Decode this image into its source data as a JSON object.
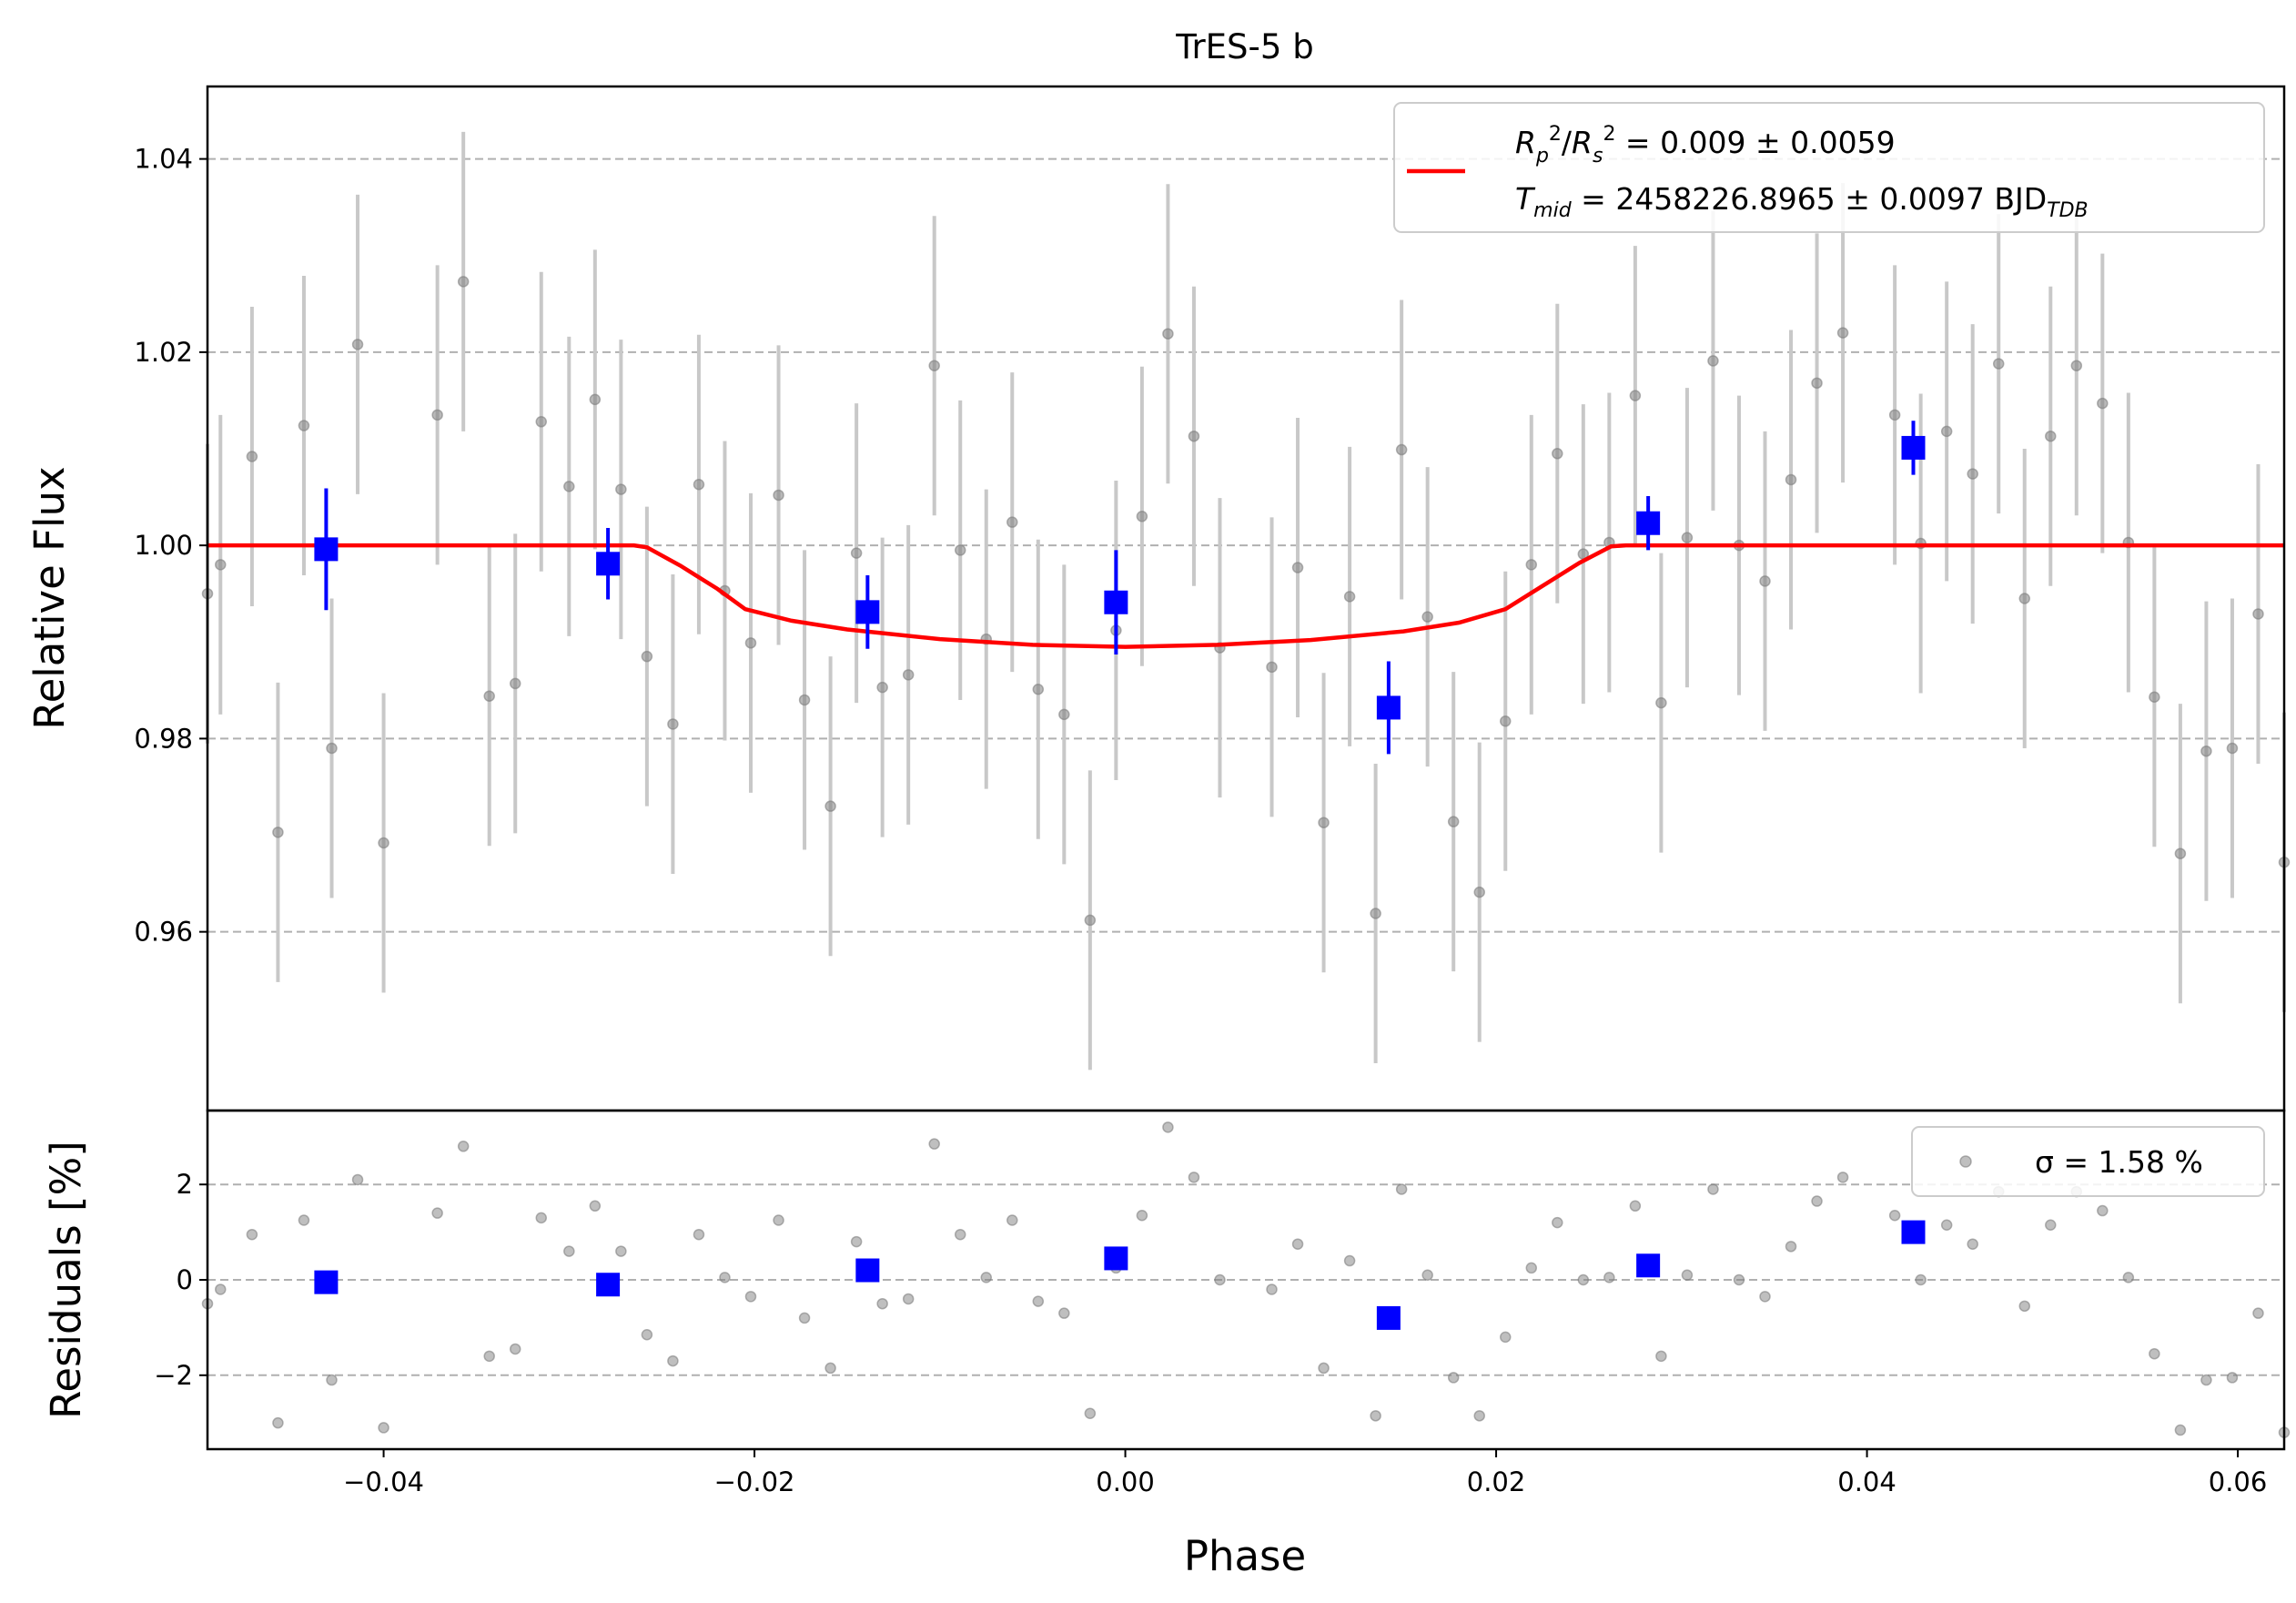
{
  "chart_data": [
    {
      "type": "scatter",
      "title": "TrES-5 b",
      "xlabel": "Phase",
      "ylabel": "Relative Flux",
      "xlim": [
        -0.0495,
        0.0625
      ],
      "ylim": [
        0.9415,
        1.0475
      ],
      "xticks": [
        -0.04,
        -0.02,
        0.0,
        0.02,
        0.04,
        0.06
      ],
      "xtick_labels": [
        "−0.04",
        "−0.02",
        "0.00",
        "0.02",
        "0.04",
        "0.06"
      ],
      "yticks": [
        0.96,
        0.98,
        1.0,
        1.02,
        1.04
      ],
      "ytick_labels": [
        "0.96",
        "0.98",
        "1.00",
        "1.02",
        "1.04"
      ],
      "grid": "horizontal dashed",
      "legend_position": "top-right",
      "legend": {
        "line1": "R_p^2/R_s^2 = 0.009 ± 0.0059",
        "line2": "T_mid = 2458226.8965 ± 0.0097 BJD_TDB"
      },
      "colors": {
        "raw": "#808080",
        "errorbar": "#c8c8c8",
        "binned": "#0000ff",
        "model": "#ff0000"
      },
      "raw_error": 0.0155,
      "raw": [
        [
          -0.0495,
          0.995
        ],
        [
          -0.0488,
          0.998
        ],
        [
          -0.0471,
          1.0092
        ],
        [
          -0.0457,
          0.9703
        ],
        [
          -0.0443,
          1.0124
        ],
        [
          -0.0428,
          0.979
        ],
        [
          -0.0414,
          1.0208
        ],
        [
          -0.04,
          0.9692
        ],
        [
          -0.0371,
          1.0135
        ],
        [
          -0.0357,
          1.0273
        ],
        [
          -0.0343,
          0.9844
        ],
        [
          -0.0329,
          0.9857
        ],
        [
          -0.0315,
          1.0128
        ],
        [
          -0.03,
          1.0061
        ],
        [
          -0.0286,
          1.0151
        ],
        [
          -0.0272,
          1.0058
        ],
        [
          -0.0258,
          0.9885
        ],
        [
          -0.0244,
          0.9815
        ],
        [
          -0.023,
          1.0063
        ],
        [
          -0.0216,
          0.9953
        ],
        [
          -0.0202,
          0.9899
        ],
        [
          -0.0187,
          1.0052
        ],
        [
          -0.0173,
          0.984
        ],
        [
          -0.0159,
          0.973
        ],
        [
          -0.0145,
          0.9992
        ],
        [
          -0.0131,
          0.9853
        ],
        [
          -0.0117,
          0.9866
        ],
        [
          -0.0103,
          1.0186
        ],
        [
          -0.0089,
          0.9995
        ],
        [
          -0.0075,
          0.9903
        ],
        [
          -0.0061,
          1.0024
        ],
        [
          -0.0047,
          0.9851
        ],
        [
          -0.0033,
          0.9825
        ],
        [
          -0.0019,
          0.9612
        ],
        [
          -0.0005,
          0.9912
        ],
        [
          0.0009,
          1.003
        ],
        [
          0.0023,
          1.0219
        ],
        [
          0.0037,
          1.0113
        ],
        [
          0.0051,
          0.9894
        ],
        [
          0.0079,
          0.9874
        ],
        [
          0.0093,
          0.9977
        ],
        [
          0.0107,
          0.9713
        ],
        [
          0.0121,
          0.9947
        ],
        [
          0.0135,
          0.9619
        ],
        [
          0.0149,
          1.0099
        ],
        [
          0.0163,
          0.9926
        ],
        [
          0.0177,
          0.9714
        ],
        [
          0.0191,
          0.9641
        ],
        [
          0.0205,
          0.9818
        ],
        [
          0.0219,
          0.998
        ],
        [
          0.0233,
          1.0095
        ],
        [
          0.0247,
          0.9991
        ],
        [
          0.0261,
          1.0003
        ],
        [
          0.0275,
          1.0155
        ],
        [
          0.0289,
          0.9837
        ],
        [
          0.0303,
          1.0008
        ],
        [
          0.0317,
          1.0191
        ],
        [
          0.0331,
          1.0
        ],
        [
          0.0345,
          0.9963
        ],
        [
          0.0359,
          1.0068
        ],
        [
          0.0373,
          1.0168
        ],
        [
          0.0387,
          1.022
        ],
        [
          0.0415,
          1.0135
        ],
        [
          0.0429,
          1.0002
        ],
        [
          0.0443,
          1.0118
        ],
        [
          0.0457,
          1.0074
        ],
        [
          0.0471,
          1.0188
        ],
        [
          0.0485,
          0.9945
        ],
        [
          0.0499,
          1.0113
        ],
        [
          0.0513,
          1.0186
        ],
        [
          0.0527,
          1.0147
        ],
        [
          0.0541,
          1.0003
        ],
        [
          0.0555,
          0.9843
        ],
        [
          0.0569,
          0.9681
        ],
        [
          0.0583,
          0.9787
        ],
        [
          0.0597,
          0.979
        ],
        [
          0.0611,
          0.9929
        ],
        [
          0.0625,
          0.9672
        ]
      ],
      "binned": [
        [
          -0.0431,
          0.9996,
          0.0063
        ],
        [
          -0.0279,
          0.9981,
          0.0037
        ],
        [
          -0.0139,
          0.9931,
          0.0038
        ],
        [
          -0.0005,
          0.9941,
          0.0054
        ],
        [
          0.0142,
          0.9832,
          0.0048
        ],
        [
          0.0282,
          1.0023,
          0.0028
        ],
        [
          0.0425,
          1.0101,
          0.0028
        ]
      ],
      "model": [
        [
          -0.0495,
          1.0
        ],
        [
          -0.0265,
          1.0
        ],
        [
          -0.0258,
          0.9998
        ],
        [
          -0.024,
          0.9979
        ],
        [
          -0.022,
          0.9955
        ],
        [
          -0.0205,
          0.9934
        ],
        [
          -0.018,
          0.9922
        ],
        [
          -0.015,
          0.9913
        ],
        [
          -0.01,
          0.9903
        ],
        [
          -0.005,
          0.9897
        ],
        [
          0.0,
          0.9895
        ],
        [
          0.005,
          0.9897
        ],
        [
          0.01,
          0.9902
        ],
        [
          0.015,
          0.9911
        ],
        [
          0.018,
          0.992
        ],
        [
          0.0205,
          0.9934
        ],
        [
          0.0225,
          0.9958
        ],
        [
          0.0245,
          0.9982
        ],
        [
          0.0262,
          0.9999
        ],
        [
          0.027,
          1.0
        ],
        [
          0.0625,
          1.0
        ]
      ]
    },
    {
      "type": "scatter",
      "xlabel": "Phase",
      "ylabel": "Residuals [%]",
      "xlim": [
        -0.0495,
        0.0625
      ],
      "ylim": [
        -3.55,
        3.55
      ],
      "yticks": [
        -2,
        0,
        2
      ],
      "ytick_labels": [
        "−2",
        "0",
        "2"
      ],
      "grid": "horizontal dashed",
      "legend_position": "top-right",
      "legend": {
        "label": "σ = 1.58 %"
      },
      "raw": [
        [
          -0.0495,
          -0.5
        ],
        [
          -0.0488,
          -0.2
        ],
        [
          -0.0471,
          0.95
        ],
        [
          -0.0457,
          -3.0
        ],
        [
          -0.0443,
          1.25
        ],
        [
          -0.0428,
          -2.1
        ],
        [
          -0.0414,
          2.1
        ],
        [
          -0.04,
          -3.1
        ],
        [
          -0.0371,
          1.4
        ],
        [
          -0.0357,
          2.8
        ],
        [
          -0.0343,
          -1.6
        ],
        [
          -0.0329,
          -1.45
        ],
        [
          -0.0315,
          1.3
        ],
        [
          -0.03,
          0.6
        ],
        [
          -0.0286,
          1.55
        ],
        [
          -0.0272,
          0.6
        ],
        [
          -0.0258,
          -1.15
        ],
        [
          -0.0244,
          -1.7
        ],
        [
          -0.023,
          0.95
        ],
        [
          -0.0216,
          0.05
        ],
        [
          -0.0202,
          -0.35
        ],
        [
          -0.0187,
          1.25
        ],
        [
          -0.0173,
          -0.8
        ],
        [
          -0.0159,
          -1.85
        ],
        [
          -0.0145,
          0.8
        ],
        [
          -0.0131,
          -0.5
        ],
        [
          -0.0117,
          -0.4
        ],
        [
          -0.0103,
          2.85
        ],
        [
          -0.0089,
          0.95
        ],
        [
          -0.0075,
          0.05
        ],
        [
          -0.0061,
          1.25
        ],
        [
          -0.0047,
          -0.45
        ],
        [
          -0.0033,
          -0.7
        ],
        [
          -0.0019,
          -2.8
        ],
        [
          -0.0005,
          0.25
        ],
        [
          0.0009,
          1.35
        ],
        [
          0.0023,
          3.2
        ],
        [
          0.0037,
          2.15
        ],
        [
          0.0051,
          0.0
        ],
        [
          0.0079,
          -0.2
        ],
        [
          0.0093,
          0.75
        ],
        [
          0.0107,
          -1.85
        ],
        [
          0.0121,
          0.4
        ],
        [
          0.0135,
          -2.85
        ],
        [
          0.0149,
          1.9
        ],
        [
          0.0163,
          0.1
        ],
        [
          0.0177,
          -2.05
        ],
        [
          0.0191,
          -2.85
        ],
        [
          0.0205,
          -1.2
        ],
        [
          0.0219,
          0.25
        ],
        [
          0.0233,
          1.2
        ],
        [
          0.0247,
          0.0
        ],
        [
          0.0261,
          0.05
        ],
        [
          0.0275,
          1.55
        ],
        [
          0.0289,
          -1.6
        ],
        [
          0.0303,
          0.1
        ],
        [
          0.0317,
          1.9
        ],
        [
          0.0331,
          0.0
        ],
        [
          0.0345,
          -0.35
        ],
        [
          0.0359,
          0.7
        ],
        [
          0.0373,
          1.65
        ],
        [
          0.0387,
          2.15
        ],
        [
          0.0415,
          1.35
        ],
        [
          0.0429,
          0.0
        ],
        [
          0.0443,
          1.15
        ],
        [
          0.0457,
          0.75
        ],
        [
          0.0471,
          1.85
        ],
        [
          0.0485,
          -0.55
        ],
        [
          0.0499,
          1.15
        ],
        [
          0.0513,
          1.85
        ],
        [
          0.0527,
          1.45
        ],
        [
          0.0541,
          0.05
        ],
        [
          0.0555,
          -1.55
        ],
        [
          0.0569,
          -3.15
        ],
        [
          0.0583,
          -2.1
        ],
        [
          0.0597,
          -2.05
        ],
        [
          0.0611,
          -0.7
        ],
        [
          0.0625,
          -3.2
        ]
      ],
      "binned": [
        [
          -0.0431,
          -0.05
        ],
        [
          -0.0279,
          -0.1
        ],
        [
          -0.0139,
          0.2
        ],
        [
          -0.0005,
          0.45
        ],
        [
          0.0142,
          -0.8
        ],
        [
          0.0282,
          0.3
        ],
        [
          0.0425,
          1.0
        ]
      ]
    }
  ]
}
